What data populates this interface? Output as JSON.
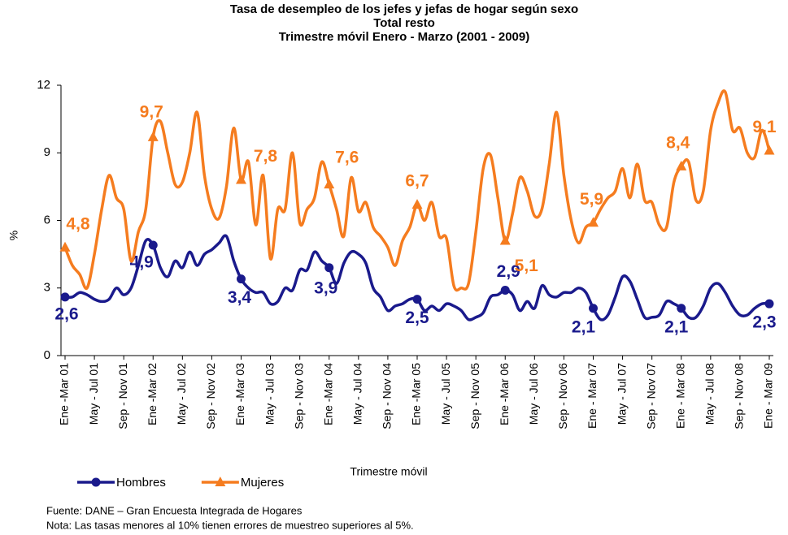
{
  "chart_data": {
    "type": "line",
    "title": "Tasa de desempleo de los jefes y jefas de hogar según sexo",
    "subtitle": [
      "Total resto",
      "Trimestre móvil Enero - Marzo (2001 - 2009)"
    ],
    "y_label": "%",
    "x_label": "Trimestre móvil",
    "categories": [
      "Ene -Mar 01",
      null,
      null,
      null,
      "May - Jul 01",
      null,
      null,
      null,
      "Sep - Nov 01",
      null,
      null,
      null,
      "Ene -Mar 02",
      null,
      null,
      null,
      "May - Jul 02",
      null,
      null,
      null,
      "Sep - Nov 02",
      null,
      null,
      null,
      "Ene -Mar 03",
      null,
      null,
      null,
      "May - Jul 03",
      null,
      null,
      null,
      "Sep - Nov 03",
      null,
      null,
      null,
      "Ene -Mar 04",
      null,
      null,
      null,
      "May - Jul 04",
      null,
      null,
      null,
      "Sep - Nov 04",
      null,
      null,
      null,
      "Ene -Mar 05",
      null,
      null,
      null,
      "May - Jul 05",
      null,
      null,
      null,
      "Sep - Nov 05",
      null,
      null,
      null,
      "Ene -Mar 06",
      null,
      null,
      null,
      "May - Jul 06",
      null,
      null,
      null,
      "Sep - Nov 06",
      null,
      null,
      null,
      "Ene - Mar 07",
      null,
      null,
      null,
      "May - Jul 07",
      null,
      null,
      null,
      "Sep - Nov 07",
      null,
      null,
      null,
      "Ene - Mar 08",
      null,
      null,
      null,
      "May - Jul 08",
      null,
      null,
      null,
      "Sep - Nov 08",
      null,
      null,
      null,
      "Ene - Mar 09"
    ],
    "series": [
      {
        "name": "Hombres",
        "color": "#1a1a8c",
        "marker": "circle",
        "values": [
          2.6,
          2.6,
          2.8,
          2.7,
          2.5,
          2.4,
          2.5,
          3.0,
          2.7,
          3.0,
          4.0,
          5.1,
          4.9,
          3.9,
          3.5,
          4.2,
          3.9,
          4.6,
          4.0,
          4.5,
          4.7,
          5.0,
          5.3,
          4.2,
          3.4,
          3.0,
          2.8,
          2.8,
          2.3,
          2.4,
          3.0,
          2.9,
          3.8,
          3.8,
          4.6,
          4.2,
          3.9,
          3.2,
          4.1,
          4.6,
          4.5,
          4.1,
          3.0,
          2.6,
          2.0,
          2.2,
          2.3,
          2.5,
          2.5,
          2.0,
          2.2,
          2.0,
          2.3,
          2.2,
          2.0,
          1.6,
          1.7,
          1.9,
          2.6,
          2.7,
          2.9,
          2.7,
          2.0,
          2.4,
          2.1,
          3.1,
          2.7,
          2.6,
          2.8,
          2.8,
          3.0,
          2.8,
          2.1,
          1.6,
          1.8,
          2.6,
          3.5,
          3.3,
          2.5,
          1.7,
          1.7,
          1.8,
          2.4,
          2.3,
          2.1,
          1.7,
          1.7,
          2.2,
          3.0,
          3.2,
          2.8,
          2.2,
          1.8,
          1.8,
          2.1,
          2.3,
          2.3
        ],
        "value_labels": [
          "2,6",
          null,
          null,
          null,
          null,
          null,
          null,
          null,
          null,
          null,
          null,
          null,
          "4,9",
          null,
          null,
          null,
          null,
          null,
          null,
          null,
          null,
          null,
          null,
          null,
          "3,4",
          null,
          null,
          null,
          null,
          null,
          null,
          null,
          null,
          null,
          null,
          null,
          "3,9",
          null,
          null,
          null,
          null,
          null,
          null,
          null,
          null,
          null,
          null,
          null,
          "2,5",
          null,
          null,
          null,
          null,
          null,
          null,
          null,
          null,
          null,
          null,
          null,
          "2,9",
          null,
          null,
          null,
          null,
          null,
          null,
          null,
          null,
          null,
          null,
          null,
          "2,1",
          null,
          null,
          null,
          null,
          null,
          null,
          null,
          null,
          null,
          null,
          null,
          "2,1",
          null,
          null,
          null,
          null,
          null,
          null,
          null,
          null,
          null,
          null,
          null,
          "2,3"
        ]
      },
      {
        "name": "Mujeres",
        "color": "#f57c1f",
        "marker": "triangle",
        "values": [
          4.8,
          4.0,
          3.6,
          3.0,
          4.5,
          6.5,
          8.0,
          7.0,
          6.5,
          4.2,
          5.5,
          6.5,
          9.7,
          10.4,
          9.0,
          7.6,
          7.7,
          9.0,
          10.8,
          8.0,
          6.5,
          6.1,
          7.5,
          10.1,
          7.8,
          8.6,
          5.8,
          8.0,
          4.3,
          6.5,
          6.5,
          9.0,
          5.9,
          6.5,
          7.0,
          8.6,
          7.6,
          6.5,
          5.3,
          7.9,
          6.4,
          6.8,
          5.7,
          5.3,
          4.8,
          4.0,
          5.1,
          5.7,
          6.7,
          6.0,
          6.8,
          5.3,
          5.2,
          3.1,
          3.0,
          3.2,
          5.5,
          8.3,
          8.9,
          7.0,
          5.1,
          6.3,
          7.9,
          7.3,
          6.2,
          6.5,
          8.5,
          10.8,
          8.0,
          6.0,
          5.0,
          5.7,
          5.9,
          6.5,
          7.0,
          7.3,
          8.3,
          7.0,
          8.5,
          6.9,
          6.8,
          5.8,
          5.7,
          7.7,
          8.4,
          8.6,
          6.9,
          7.3,
          10.0,
          11.2,
          11.7,
          10.0,
          10.1,
          9.0,
          8.8,
          10.0,
          9.1
        ],
        "value_labels": [
          "4,8",
          null,
          null,
          null,
          null,
          null,
          null,
          null,
          null,
          null,
          null,
          null,
          "9,7",
          null,
          null,
          null,
          null,
          null,
          null,
          null,
          null,
          null,
          null,
          null,
          "7,8",
          null,
          null,
          null,
          null,
          null,
          null,
          null,
          null,
          null,
          null,
          null,
          "7,6",
          null,
          null,
          null,
          null,
          null,
          null,
          null,
          null,
          null,
          null,
          null,
          "6,7",
          null,
          null,
          null,
          null,
          null,
          null,
          null,
          null,
          null,
          null,
          null,
          "5,1",
          null,
          null,
          null,
          null,
          null,
          null,
          null,
          null,
          null,
          null,
          null,
          "5,9",
          null,
          null,
          null,
          null,
          null,
          null,
          null,
          null,
          null,
          null,
          null,
          "8,4",
          null,
          null,
          null,
          null,
          null,
          null,
          null,
          null,
          null,
          null,
          null,
          "9,1"
        ]
      }
    ],
    "ylim": [
      0,
      12
    ],
    "yticks": [
      0,
      3,
      6,
      9,
      12
    ],
    "grid": false,
    "legend": "bottom-left",
    "notes": [
      "Fuente: DANE – Gran Encuesta Integrada de Hogares",
      "Nota: Las tasas menores al 10% tienen errores de muestreo superiores al 5%."
    ]
  }
}
